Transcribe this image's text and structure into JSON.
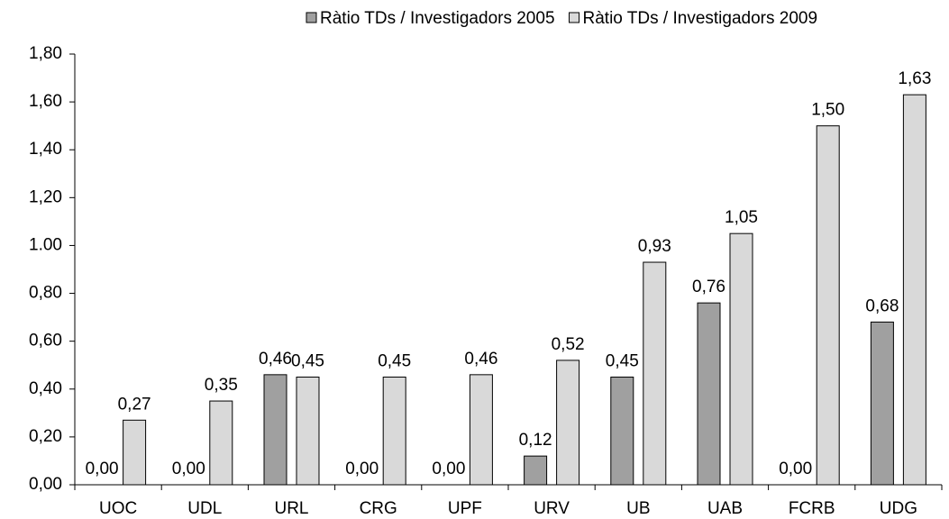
{
  "chart_data": {
    "type": "bar",
    "categories": [
      "UOC",
      "UDL",
      "URL",
      "CRG",
      "UPF",
      "URV",
      "UB",
      "UAB",
      "FCRB",
      "UDG"
    ],
    "series": [
      {
        "name": "Ràtio TDs / Investigadors 2005",
        "color": "#a0a0a0",
        "values": [
          0,
          0,
          0.46,
          0,
          0,
          0.12,
          0.45,
          0.76,
          0,
          0.68
        ],
        "value_labels": [
          "0,00",
          "0,00",
          "0,46",
          "0,00",
          "0,00",
          "0,12",
          "0,45",
          "0,76",
          "0,00",
          "0,68"
        ]
      },
      {
        "name": "Ràtio TDs / Investigadors 2009",
        "color": "#d9d9d9",
        "values": [
          0.27,
          0.35,
          0.45,
          0.45,
          0.46,
          0.52,
          0.93,
          1.05,
          1.5,
          1.63
        ],
        "value_labels": [
          "0,27",
          "0,35",
          "0,45",
          "0,45",
          "0,46",
          "0,52",
          "0,93",
          "1,05",
          "1,50",
          "1,63"
        ]
      }
    ],
    "ylim": [
      0,
      1.8
    ],
    "yticks": [
      {
        "value": 0,
        "label": "0,00"
      },
      {
        "value": 0.2,
        "label": "0,20"
      },
      {
        "value": 0.4,
        "label": "0,40"
      },
      {
        "value": 0.6,
        "label": "0,60"
      },
      {
        "value": 0.8,
        "label": "0,80"
      },
      {
        "value": 1.0,
        "label": "1.00"
      },
      {
        "value": 1.2,
        "label": "1,20"
      },
      {
        "value": 1.4,
        "label": "1,40"
      },
      {
        "value": 1.6,
        "label": "1,60"
      },
      {
        "value": 1.8,
        "label": "1,80"
      }
    ],
    "grid": false,
    "legend": "top"
  }
}
